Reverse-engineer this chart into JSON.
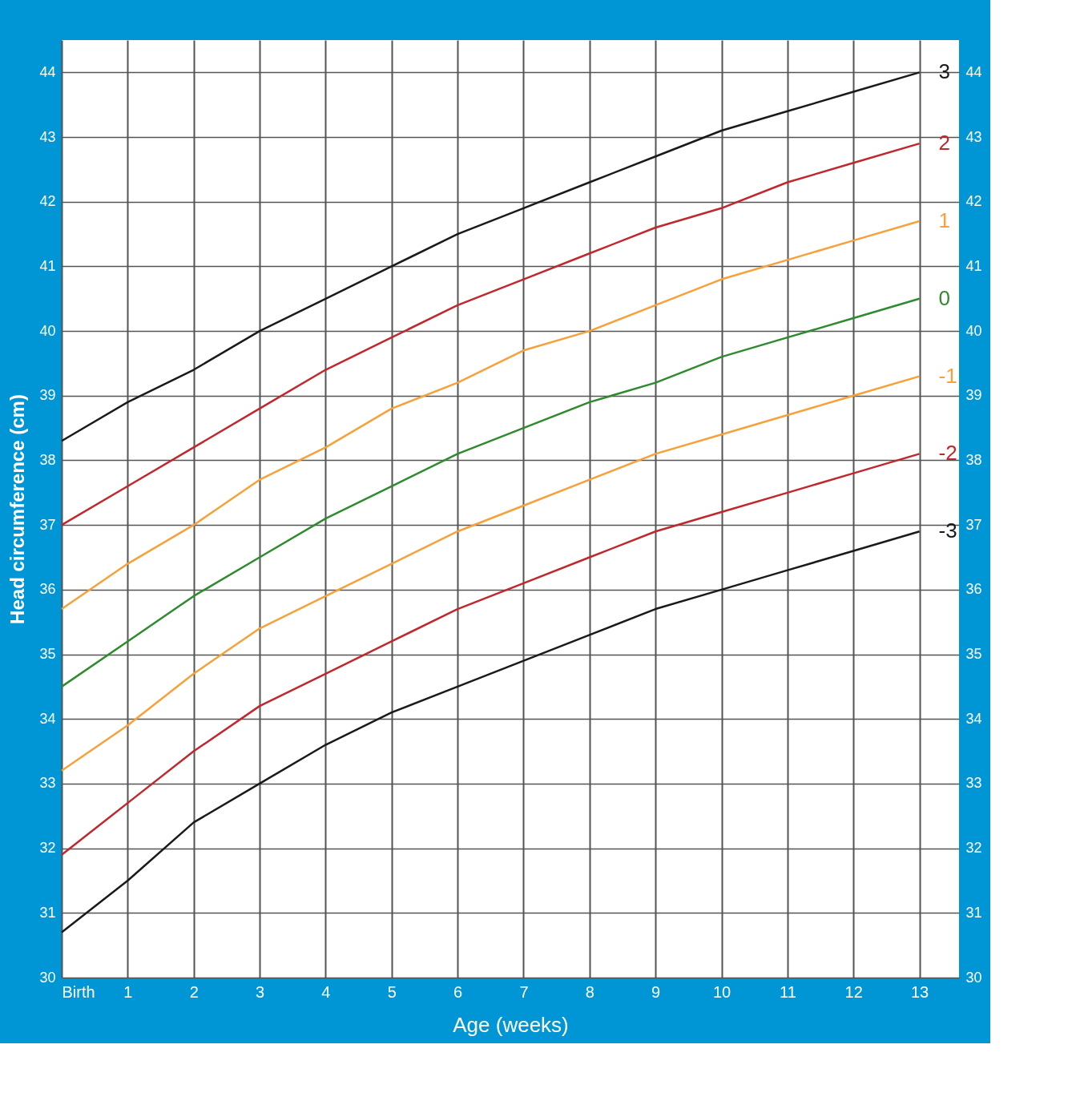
{
  "chart_data": {
    "type": "line",
    "xlabel": "Age (weeks)",
    "ylabel": "Head circumference (cm)",
    "x": [
      0,
      1,
      2,
      3,
      4,
      5,
      6,
      7,
      8,
      9,
      10,
      11,
      12,
      13
    ],
    "series": [
      {
        "name": "3",
        "color": "#1a1a1a",
        "values": [
          38.3,
          38.9,
          39.4,
          40.0,
          40.5,
          41.0,
          41.5,
          41.9,
          42.3,
          42.7,
          43.1,
          43.4,
          43.7,
          44.0
        ]
      },
      {
        "name": "2",
        "color": "#c0282d",
        "values": [
          37.0,
          37.6,
          38.2,
          38.8,
          39.4,
          39.9,
          40.4,
          40.8,
          41.2,
          41.6,
          41.9,
          42.3,
          42.6,
          42.9
        ]
      },
      {
        "name": "1",
        "color": "#f7a13a",
        "values": [
          35.7,
          36.4,
          37.0,
          37.7,
          38.2,
          38.8,
          39.2,
          39.7,
          40.0,
          40.4,
          40.8,
          41.1,
          41.4,
          41.7
        ]
      },
      {
        "name": "0",
        "color": "#2e8b2e",
        "values": [
          34.5,
          35.2,
          35.9,
          36.5,
          37.1,
          37.6,
          38.1,
          38.5,
          38.9,
          39.2,
          39.6,
          39.9,
          40.2,
          40.5
        ]
      },
      {
        "name": "-1",
        "color": "#f7a13a",
        "values": [
          33.2,
          33.9,
          34.7,
          35.4,
          35.9,
          36.4,
          36.9,
          37.3,
          37.7,
          38.1,
          38.4,
          38.7,
          39.0,
          39.3
        ]
      },
      {
        "name": "-2",
        "color": "#c0282d",
        "values": [
          31.9,
          32.7,
          33.5,
          34.2,
          34.7,
          35.2,
          35.7,
          36.1,
          36.5,
          36.9,
          37.2,
          37.5,
          37.8,
          38.1
        ]
      },
      {
        "name": "-3",
        "color": "#1a1a1a",
        "values": [
          30.7,
          31.5,
          32.4,
          33.0,
          33.6,
          34.1,
          34.5,
          34.9,
          35.3,
          35.7,
          36.0,
          36.3,
          36.6,
          36.9
        ]
      }
    ],
    "xlim": [
      0,
      13.6
    ],
    "xticks": [
      {
        "value": 0,
        "label": "Birth"
      },
      1,
      2,
      3,
      4,
      5,
      6,
      7,
      8,
      9,
      10,
      11,
      12,
      13
    ],
    "ylim": [
      30,
      44.5
    ],
    "yticks": [
      30,
      31,
      32,
      33,
      34,
      35,
      36,
      37,
      38,
      39,
      40,
      41,
      42,
      43,
      44
    ],
    "y2lim": [
      30,
      44.5
    ],
    "y2ticks": [
      30,
      31,
      32,
      33,
      34,
      35,
      36,
      37,
      38,
      39,
      40,
      41,
      42,
      43,
      44
    ],
    "grid": true,
    "legend": false,
    "marker": "none",
    "line_style": "solid"
  }
}
